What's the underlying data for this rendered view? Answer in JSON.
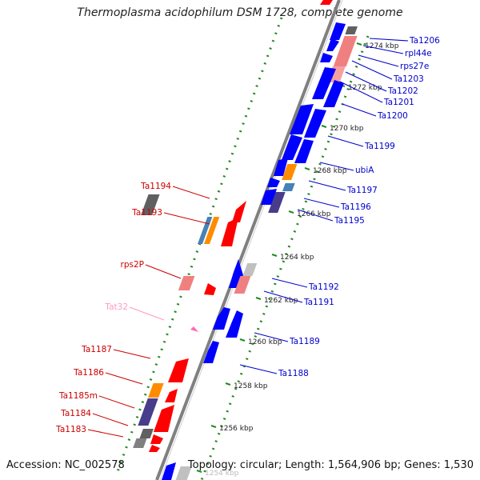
{
  "title": "Thermoplasma acidophilum DSM 1728, complete genome",
  "footer": {
    "accession": "Accession: NC_002578",
    "summary": "Topology: circular; Length: 1,564,906 bp; Genes: 1,530"
  },
  "colors": {
    "forward": "#ff0000",
    "reverse": "#0000ff",
    "ribosomal": "#f08080",
    "rna": "#808080",
    "orange": "#ff8c00",
    "steelblue": "#4682b4",
    "purple": "#483d8b",
    "pink": "#ff69b4",
    "tick": "#228b22"
  },
  "scale_labels": [
    "1274 kbp",
    "1272 kbp",
    "1270 kbp",
    "1268 kbp",
    "1266 kbp",
    "1264 kbp",
    "1262 kbp",
    "1260 kbp",
    "1258 kbp",
    "1256 kbp",
    "1254 kbp"
  ],
  "left_labels": [
    "Ta1194",
    "Ta1193",
    "rps2P",
    "Tat32",
    "Ta1187",
    "Ta1186",
    "Ta1185m",
    "Ta1184",
    "Ta1183"
  ],
  "right_labels": [
    "Ta1206",
    "rpl44e",
    "rps27e",
    "Ta1203",
    "Ta1202",
    "Ta1201",
    "Ta1200",
    "Ta1199",
    "ubiA",
    "Ta1197",
    "Ta1196",
    "Ta1195",
    "Ta1192",
    "Ta1191",
    "Ta1189",
    "Ta1188"
  ]
}
